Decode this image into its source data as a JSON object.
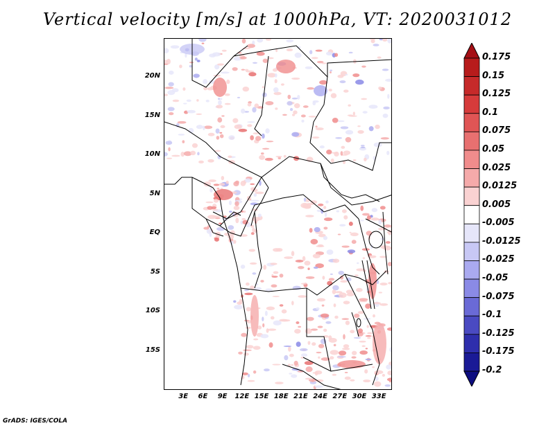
{
  "title": "Vertical velocity [m/s] at 1000hPa, VT: 2020031012",
  "footer": "GrADS: IGES/COLA",
  "map": {
    "lon_range": [
      0,
      35
    ],
    "lat_range": [
      -20,
      25
    ],
    "y_ticks": [
      {
        "value": 20,
        "label": "20N"
      },
      {
        "value": 15,
        "label": "15N"
      },
      {
        "value": 10,
        "label": "10N"
      },
      {
        "value": 5,
        "label": "5N"
      },
      {
        "value": 0,
        "label": "EQ"
      },
      {
        "value": -5,
        "label": "5S"
      },
      {
        "value": -10,
        "label": "10S"
      },
      {
        "value": -15,
        "label": "15S"
      }
    ],
    "x_ticks": [
      {
        "value": 3,
        "label": "3E"
      },
      {
        "value": 6,
        "label": "6E"
      },
      {
        "value": 9,
        "label": "9E"
      },
      {
        "value": 12,
        "label": "12E"
      },
      {
        "value": 15,
        "label": "15E"
      },
      {
        "value": 18,
        "label": "18E"
      },
      {
        "value": 21,
        "label": "21E"
      },
      {
        "value": 24,
        "label": "24E"
      },
      {
        "value": 27,
        "label": "27E"
      },
      {
        "value": 30,
        "label": "30E"
      },
      {
        "value": 33,
        "label": "33E"
      }
    ]
  },
  "colorbar": {
    "levels": [
      {
        "label": "0.175"
      },
      {
        "label": "0.15"
      },
      {
        "label": "0.125"
      },
      {
        "label": "0.1"
      },
      {
        "label": "0.075"
      },
      {
        "label": "0.05"
      },
      {
        "label": "0.025"
      },
      {
        "label": "0.0125"
      },
      {
        "label": "0.005"
      },
      {
        "label": "-0.005"
      },
      {
        "label": "-0.0125"
      },
      {
        "label": "-0.025"
      },
      {
        "label": "-0.05"
      },
      {
        "label": "-0.075"
      },
      {
        "label": "-0.1"
      },
      {
        "label": "-0.125"
      },
      {
        "label": "-0.175"
      },
      {
        "label": "-0.2"
      }
    ],
    "colors": [
      "#a50f15",
      "#b71c1c",
      "#c62a2a",
      "#d63b3b",
      "#e05555",
      "#e87070",
      "#f08c8c",
      "#f5aaaa",
      "#fad2d2",
      "#ffffff",
      "#e6e6fa",
      "#c8c8f5",
      "#aaaaf0",
      "#8a8ae6",
      "#6a6ad6",
      "#4a4ac2",
      "#2e2eac",
      "#1a1a96",
      "#0d0d80"
    ]
  }
}
